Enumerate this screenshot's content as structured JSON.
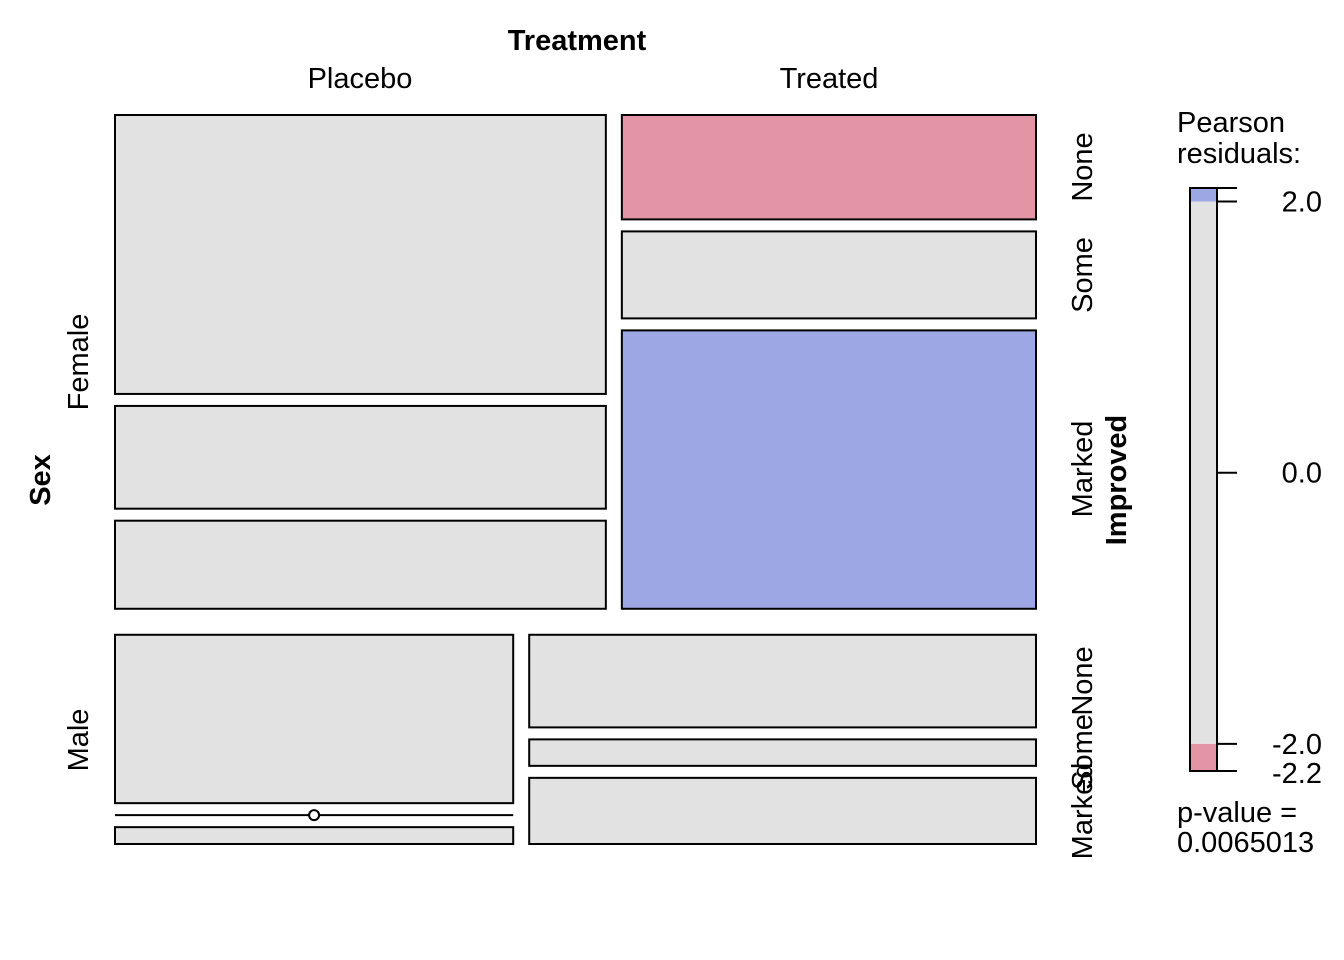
{
  "chart_data": {
    "type": "mosaic",
    "title": "",
    "column_variable": "Treatment",
    "row_variable": "Sex",
    "inner_variable": "Improved",
    "columns": [
      "Placebo",
      "Treated"
    ],
    "rows": [
      "Female",
      "Male"
    ],
    "levels": [
      "None",
      "Some",
      "Marked"
    ],
    "cells": [
      {
        "sex": "Female",
        "treatment": "Placebo",
        "improved": "None",
        "count": 19,
        "shade": "neutral"
      },
      {
        "sex": "Female",
        "treatment": "Placebo",
        "improved": "Some",
        "count": 7,
        "shade": "neutral"
      },
      {
        "sex": "Female",
        "treatment": "Placebo",
        "improved": "Marked",
        "count": 6,
        "shade": "neutral"
      },
      {
        "sex": "Female",
        "treatment": "Treated",
        "improved": "None",
        "count": 6,
        "shade": "negative"
      },
      {
        "sex": "Female",
        "treatment": "Treated",
        "improved": "Some",
        "count": 5,
        "shade": "neutral"
      },
      {
        "sex": "Female",
        "treatment": "Treated",
        "improved": "Marked",
        "count": 16,
        "shade": "positive"
      },
      {
        "sex": "Male",
        "treatment": "Placebo",
        "improved": "None",
        "count": 10,
        "shade": "neutral"
      },
      {
        "sex": "Male",
        "treatment": "Placebo",
        "improved": "Some",
        "count": 0,
        "shade": "neutral"
      },
      {
        "sex": "Male",
        "treatment": "Placebo",
        "improved": "Marked",
        "count": 1,
        "shade": "neutral"
      },
      {
        "sex": "Male",
        "treatment": "Treated",
        "improved": "None",
        "count": 7,
        "shade": "neutral"
      },
      {
        "sex": "Male",
        "treatment": "Treated",
        "improved": "Some",
        "count": 2,
        "shade": "neutral"
      },
      {
        "sex": "Male",
        "treatment": "Treated",
        "improved": "Marked",
        "count": 5,
        "shade": "neutral"
      }
    ],
    "colors": {
      "neutral": "#e2e2e2",
      "positive": "#9da7e3",
      "negative": "#e495a5",
      "border": "#000000"
    },
    "legend": {
      "title_line1": "Pearson",
      "title_line2": "residuals:",
      "min": -2.2,
      "max": 2.1,
      "ticks": [
        "2.0",
        "0.0",
        "-2.0",
        "-2.2"
      ],
      "tick_values": [
        2.0,
        0.0,
        -2.0,
        -2.2
      ],
      "pvalue_line1": "p-value =",
      "pvalue_line2": "0.0065013",
      "placement": "right"
    }
  }
}
